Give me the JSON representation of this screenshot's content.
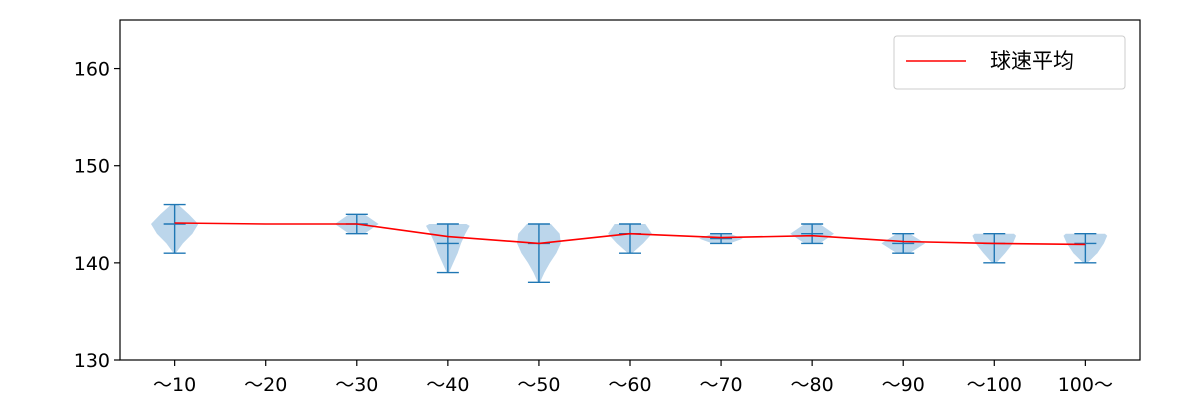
{
  "chart_data": {
    "type": "violin",
    "categories": [
      "〜10",
      "〜20",
      "〜30",
      "〜40",
      "〜50",
      "〜60",
      "〜70",
      "〜80",
      "〜90",
      "〜100",
      "100〜"
    ],
    "ylim": [
      130,
      165
    ],
    "yticks": [
      130,
      140,
      150,
      160
    ],
    "grid": false,
    "legend": {
      "placement": "top-right",
      "entries": [
        "球速平均"
      ]
    },
    "colors": {
      "violin_fill": "#a6c8e4",
      "violin_edge": "#1f77b4",
      "mean_line": "#ff0000",
      "axis": "#000000"
    },
    "series": [
      {
        "name": "球速平均",
        "type": "line",
        "values": [
          144.1,
          144.0,
          144.0,
          142.7,
          142.0,
          143.0,
          142.6,
          142.8,
          142.2,
          142.0,
          141.9
        ]
      }
    ],
    "distributions": [
      {
        "category": "〜10",
        "min": 141,
        "max": 146,
        "median": 144,
        "shape": [
          [
            141,
            0.05
          ],
          [
            142,
            0.35
          ],
          [
            143,
            0.75
          ],
          [
            144,
            1.0
          ],
          [
            145,
            0.6
          ],
          [
            146,
            0.15
          ]
        ],
        "max_half_width": 0.26
      },
      {
        "category": "〜20",
        "min": null,
        "max": null,
        "median": null,
        "shape": [],
        "max_half_width": 0
      },
      {
        "category": "〜30",
        "min": 143,
        "max": 145,
        "median": 144,
        "shape": [
          [
            143,
            0.35
          ],
          [
            144,
            1.0
          ],
          [
            145,
            0.35
          ]
        ],
        "max_half_width": 0.24
      },
      {
        "category": "〜40",
        "min": 139,
        "max": 144,
        "median": 142,
        "shape": [
          [
            139,
            0.05
          ],
          [
            140,
            0.25
          ],
          [
            141,
            0.45
          ],
          [
            142,
            0.6
          ],
          [
            143,
            0.8
          ],
          [
            143.8,
            1.0
          ],
          [
            144,
            0.85
          ]
        ],
        "max_half_width": 0.24
      },
      {
        "category": "〜50",
        "min": 138,
        "max": 144,
        "median": 142,
        "shape": [
          [
            138,
            0.05
          ],
          [
            139,
            0.25
          ],
          [
            140,
            0.5
          ],
          [
            141,
            0.8
          ],
          [
            142,
            1.0
          ],
          [
            143,
            0.95
          ],
          [
            144,
            0.55
          ]
        ],
        "max_half_width": 0.24
      },
      {
        "category": "〜60",
        "min": 141,
        "max": 144,
        "median": 143,
        "shape": [
          [
            141,
            0.1
          ],
          [
            142,
            0.6
          ],
          [
            143,
            1.0
          ],
          [
            144,
            0.7
          ]
        ],
        "max_half_width": 0.24
      },
      {
        "category": "〜70",
        "min": 142,
        "max": 143,
        "median": 142.5,
        "shape": [
          [
            142,
            0.4
          ],
          [
            142.5,
            1.0
          ],
          [
            143,
            0.4
          ]
        ],
        "max_half_width": 0.24
      },
      {
        "category": "〜80",
        "min": 142,
        "max": 144,
        "median": 143,
        "shape": [
          [
            142,
            0.35
          ],
          [
            143,
            1.0
          ],
          [
            144,
            0.35
          ]
        ],
        "max_half_width": 0.24
      },
      {
        "category": "〜90",
        "min": 141,
        "max": 143,
        "median": 142,
        "shape": [
          [
            141,
            0.3
          ],
          [
            142,
            1.0
          ],
          [
            143,
            0.3
          ]
        ],
        "max_half_width": 0.24
      },
      {
        "category": "〜100",
        "min": 140,
        "max": 143,
        "median": 142,
        "shape": [
          [
            140,
            0.1
          ],
          [
            141,
            0.5
          ],
          [
            142,
            0.85
          ],
          [
            142.8,
            1.0
          ],
          [
            143,
            0.9
          ]
        ],
        "max_half_width": 0.24
      },
      {
        "category": "100〜",
        "min": 140,
        "max": 143,
        "median": 142,
        "shape": [
          [
            140,
            0.1
          ],
          [
            141,
            0.55
          ],
          [
            142,
            0.85
          ],
          [
            142.8,
            1.0
          ],
          [
            143,
            0.9
          ]
        ],
        "max_half_width": 0.24
      }
    ]
  }
}
